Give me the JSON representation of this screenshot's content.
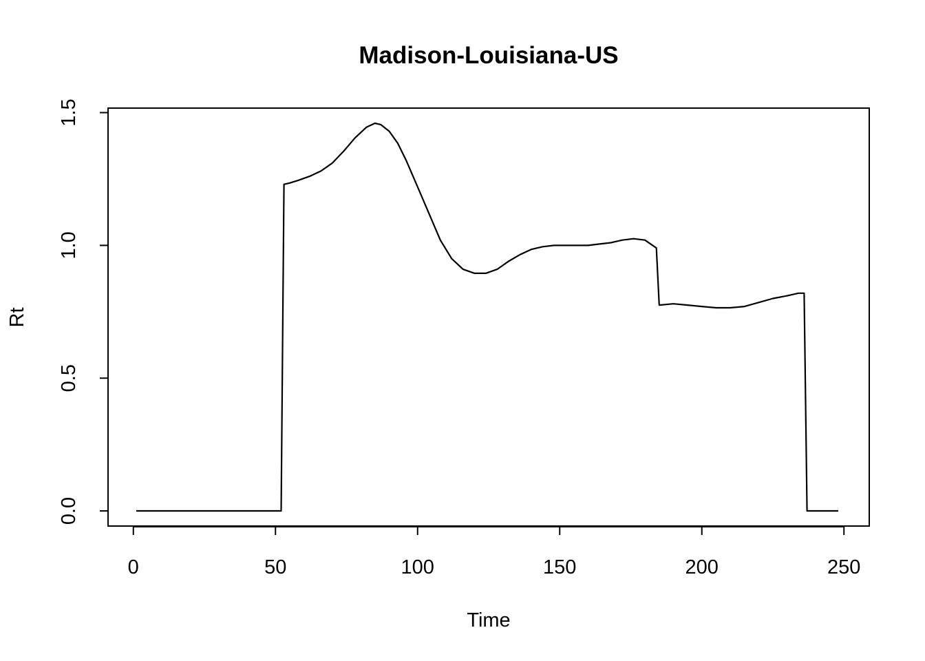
{
  "chart_data": {
    "type": "line",
    "title": "Madison-Louisiana-US",
    "xlabel": "Time",
    "ylabel": "Rt",
    "xlim": [
      -8.9,
      258.9
    ],
    "ylim": [
      -0.057,
      1.517
    ],
    "x_ticks": [
      0,
      50,
      100,
      150,
      200,
      250
    ],
    "x_tick_labels": [
      "0",
      "50",
      "100",
      "150",
      "200",
      "250"
    ],
    "y_ticks": [
      0,
      0.5,
      1,
      1.5
    ],
    "y_tick_labels": [
      "0.0",
      "0.5",
      "1.0",
      "1.5"
    ],
    "grid": false,
    "legend": "none",
    "series": [
      {
        "color": "#000000",
        "x": [
          1,
          52,
          53,
          55,
          58,
          62,
          66,
          70,
          74,
          78,
          82,
          85,
          87,
          90,
          93,
          96,
          100,
          104,
          108,
          112,
          116,
          120,
          124,
          128,
          132,
          136,
          140,
          144,
          148,
          152,
          156,
          160,
          164,
          168,
          172,
          176,
          180,
          184,
          185,
          190,
          195,
          200,
          205,
          210,
          215,
          220,
          225,
          230,
          234,
          236,
          237,
          240,
          245,
          248
        ],
        "y": [
          0,
          0,
          1.23,
          1.235,
          1.245,
          1.26,
          1.28,
          1.31,
          1.355,
          1.405,
          1.445,
          1.46,
          1.455,
          1.43,
          1.385,
          1.32,
          1.22,
          1.12,
          1.02,
          0.95,
          0.91,
          0.895,
          0.895,
          0.91,
          0.94,
          0.965,
          0.985,
          0.995,
          1.0,
          1.0,
          1.0,
          1.0,
          1.005,
          1.01,
          1.02,
          1.025,
          1.02,
          0.99,
          0.775,
          0.78,
          0.775,
          0.77,
          0.765,
          0.765,
          0.77,
          0.785,
          0.8,
          0.81,
          0.82,
          0.82,
          0,
          0,
          0,
          0
        ]
      }
    ]
  }
}
